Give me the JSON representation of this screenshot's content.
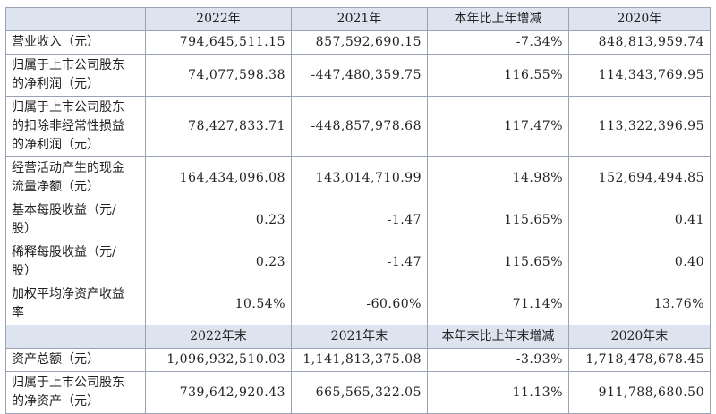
{
  "sections": [
    {
      "header": [
        "2022年",
        "2021年",
        "本年比上年增减",
        "2020年"
      ],
      "rows": [
        [
          "营业收入（元）",
          "794,645,511.15",
          "857,592,690.15",
          "-7.34%",
          "848,813,959.74"
        ],
        [
          "归属于上市公司股东的净利润（元）",
          "74,077,598.38",
          "-447,480,359.75",
          "116.55%",
          "114,343,769.95"
        ],
        [
          "归属于上市公司股东的扣除非经常性损益的净利润（元）",
          "78,427,833.71",
          "-448,857,978.68",
          "117.47%",
          "113,322,396.95"
        ],
        [
          "经营活动产生的现金流量净额（元）",
          "164,434,096.08",
          "143,014,710.99",
          "14.98%",
          "152,694,494.85"
        ],
        [
          "基本每股收益（元/股）",
          "0.23",
          "-1.47",
          "115.65%",
          "0.41"
        ],
        [
          "稀释每股收益（元/股）",
          "0.23",
          "-1.47",
          "115.65%",
          "0.40"
        ],
        [
          "加权平均净资产收益率",
          "10.54%",
          "-60.60%",
          "71.14%",
          "13.76%"
        ]
      ]
    },
    {
      "header": [
        "2022年末",
        "2021年末",
        "本年末比上年末增减",
        "2020年末"
      ],
      "rows": [
        [
          "资产总额（元）",
          "1,096,932,510.03",
          "1,141,813,375.08",
          "-3.93%",
          "1,718,478,678.45"
        ],
        [
          "归属于上市公司股东的净资产（元）",
          "739,642,920.43",
          "665,565,322.05",
          "11.13%",
          "911,788,680.50"
        ]
      ]
    }
  ]
}
